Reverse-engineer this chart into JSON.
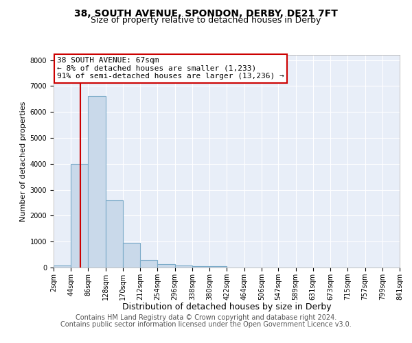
{
  "title1": "38, SOUTH AVENUE, SPONDON, DERBY, DE21 7FT",
  "title2": "Size of property relative to detached houses in Derby",
  "xlabel": "Distribution of detached houses by size in Derby",
  "ylabel": "Number of detached properties",
  "footer_line1": "Contains HM Land Registry data © Crown copyright and database right 2024.",
  "footer_line2": "Contains public sector information licensed under the Open Government Licence v3.0.",
  "bar_edges": [
    2,
    44,
    86,
    128,
    170,
    212,
    254,
    296,
    338,
    380,
    422,
    464,
    506,
    547,
    589,
    631,
    673,
    715,
    757,
    799,
    841
  ],
  "bar_heights": [
    80,
    4000,
    6600,
    2600,
    950,
    300,
    130,
    80,
    60,
    55,
    0,
    0,
    0,
    0,
    0,
    0,
    0,
    0,
    0,
    0
  ],
  "bar_color": "#c9d9ea",
  "bar_edge_color": "#7aaac8",
  "property_line_x": 67,
  "property_line_color": "#cc0000",
  "annotation_text": "38 SOUTH AVENUE: 67sqm\n← 8% of detached houses are smaller (1,233)\n91% of semi-detached houses are larger (13,236) →",
  "annotation_box_color": "#ffffff",
  "annotation_box_edge": "#cc0000",
  "ylim": [
    0,
    8200
  ],
  "yticks": [
    0,
    1000,
    2000,
    3000,
    4000,
    5000,
    6000,
    7000,
    8000
  ],
  "plot_bg_color": "#e8eef8",
  "grid_color": "#ffffff",
  "title1_fontsize": 10,
  "title2_fontsize": 9,
  "xlabel_fontsize": 9,
  "ylabel_fontsize": 8,
  "tick_fontsize": 7,
  "annotation_fontsize": 8,
  "footer_fontsize": 7
}
